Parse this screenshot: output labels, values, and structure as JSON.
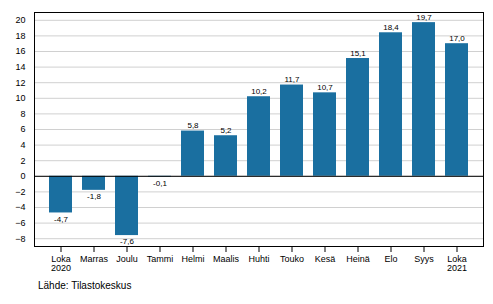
{
  "chart_data": {
    "type": "bar",
    "categories": [
      "Loka\n2020",
      "Marras",
      "Joulu",
      "Tammi",
      "Helmi",
      "Maalis",
      "Huhti",
      "Touko",
      "Kesä",
      "Heinä",
      "Elo",
      "Syys",
      "Loka\n2021"
    ],
    "values": [
      -4.7,
      -1.8,
      -7.6,
      -0.1,
      5.8,
      5.2,
      10.2,
      11.7,
      10.7,
      15.1,
      18.4,
      19.7,
      17.0
    ],
    "value_labels": [
      "-4,7",
      "-1,8",
      "-7,6",
      "-0,1",
      "5,8",
      "5,2",
      "10,2",
      "11,7",
      "10,7",
      "15,1",
      "18,4",
      "19,7",
      "17,0"
    ],
    "color": "#1a6fa0",
    "ylim": [
      -9,
      21
    ],
    "yticks": [
      -8,
      -6,
      -4,
      -2,
      0,
      2,
      4,
      6,
      8,
      10,
      12,
      14,
      16,
      18,
      20
    ],
    "grid": true,
    "data_labels": true,
    "caption": "Lähde: Tilastokeskus"
  }
}
